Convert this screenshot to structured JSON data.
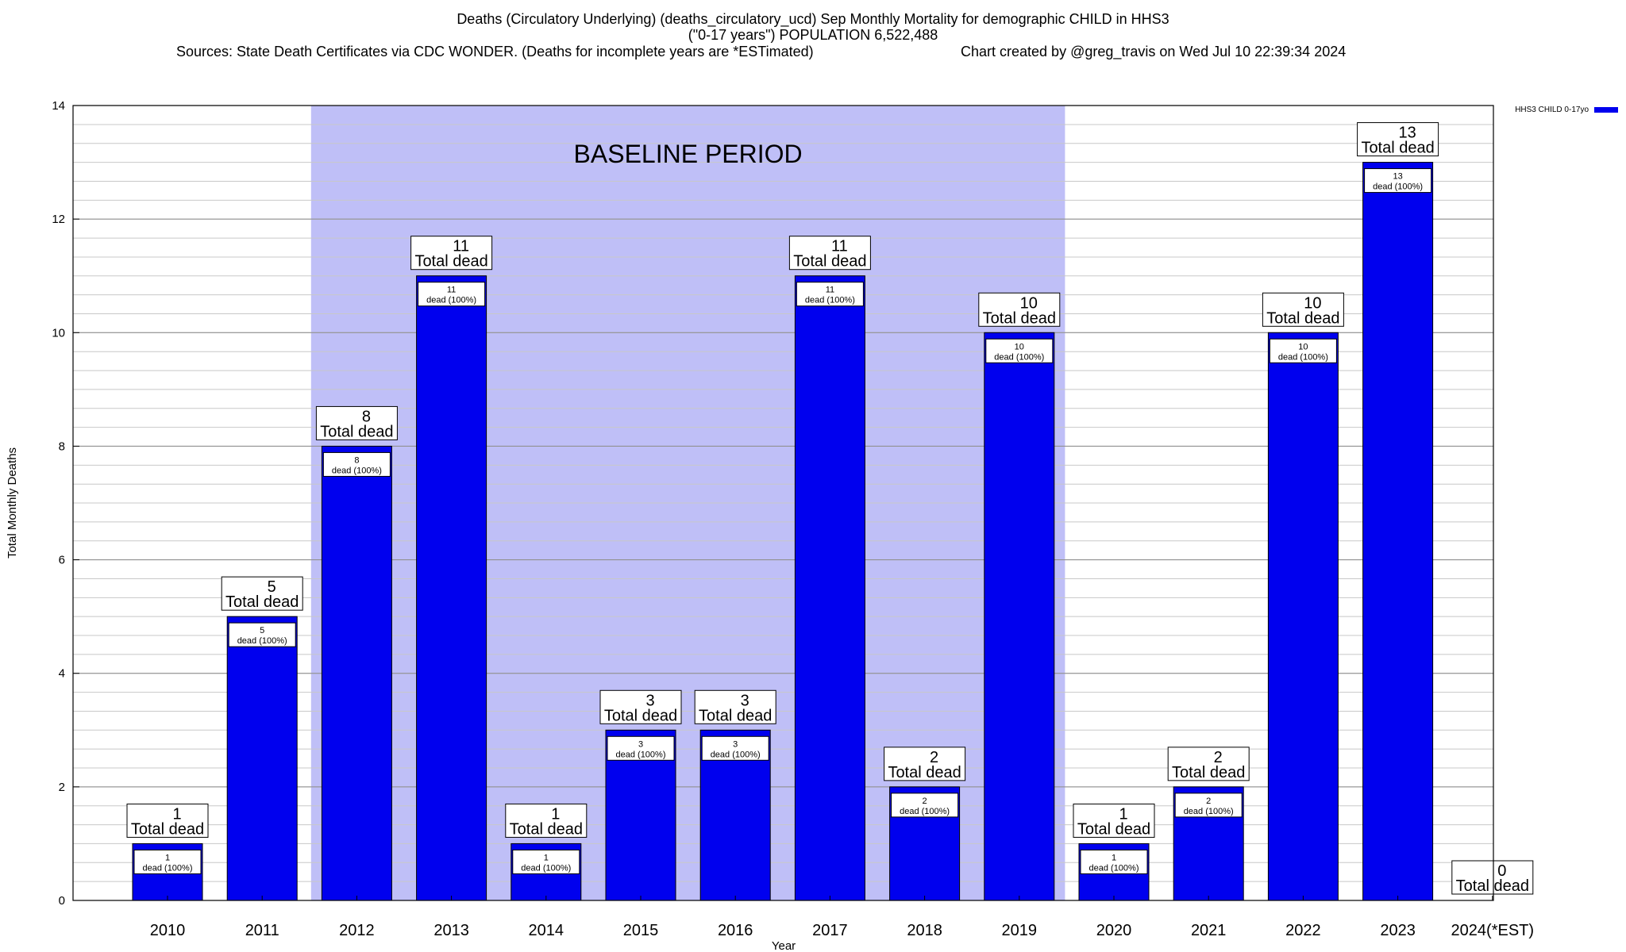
{
  "title": {
    "line1": "Deaths (Circulatory Underlying) (deaths_circulatory_ucd) Sep Monthly Mortality for demographic CHILD in HHS3",
    "line2": "(\"0-17 years\") POPULATION 6,522,488",
    "sources": "Sources: State Death Certificates via CDC WONDER. (Deaths for incomplete years are *ESTimated)",
    "credit": "Chart created by @greg_travis on Wed Jul 10 22:39:34 2024"
  },
  "chart_data": {
    "type": "bar",
    "categories": [
      "2010",
      "2011",
      "2012",
      "2013",
      "2014",
      "2015",
      "2016",
      "2017",
      "2018",
      "2019",
      "2020",
      "2021",
      "2022",
      "2023",
      "2024(*EST)"
    ],
    "series": [
      {
        "name": "HHS3 CHILD 0-17yo",
        "color": "#0000ee",
        "values": [
          1,
          5,
          8,
          11,
          1,
          3,
          3,
          11,
          2,
          10,
          1,
          2,
          10,
          13,
          0
        ]
      }
    ],
    "top_labels": [
      "1",
      "5",
      "8",
      "11",
      "1",
      "3",
      "3",
      "11",
      "2",
      "10",
      "1",
      "2",
      "10",
      "13",
      "0"
    ],
    "top_label_suffix": "Total dead",
    "inner_labels": [
      "1",
      "5",
      "8",
      "11",
      "1",
      "3",
      "3",
      "11",
      "2",
      "10",
      "1",
      "2",
      "10",
      "13",
      ""
    ],
    "inner_label_suffix": "dead (100%)",
    "xlabel": "Year",
    "ylabel": "Total Monthly Deaths",
    "ylim": [
      0,
      14
    ],
    "yticks": [
      0,
      2,
      4,
      6,
      8,
      10,
      12,
      14
    ],
    "minor_grid_step": 0.3333,
    "grid": true,
    "baseline_period": {
      "label": "BASELINE PERIOD",
      "start": "2012",
      "end": "2019",
      "color": "#bfbff7"
    },
    "legend": {
      "position": "top-right",
      "label": "HHS3 CHILD 0-17yo"
    }
  }
}
